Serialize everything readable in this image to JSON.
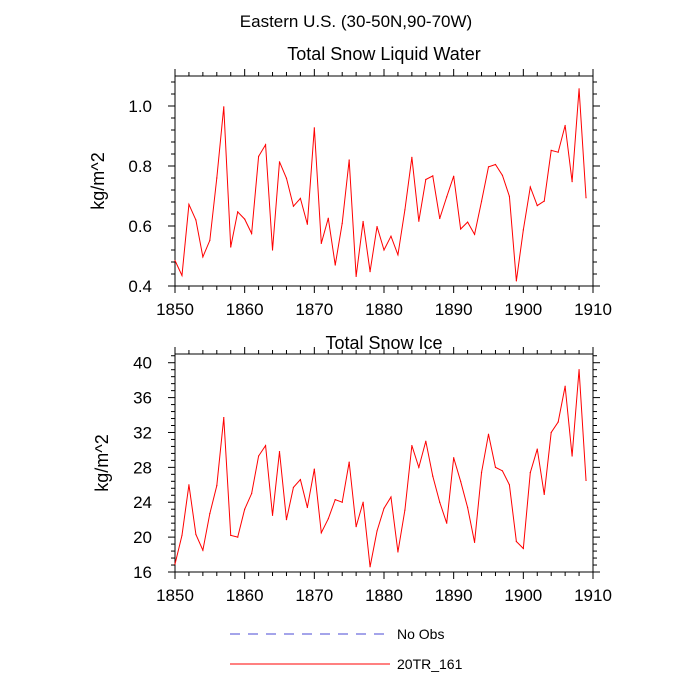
{
  "figure_title": "Eastern U.S. (30-50N,90-70W)",
  "legend": {
    "entries": [
      {
        "label": "No Obs",
        "color": "#4a4ad6",
        "style": "dashed"
      },
      {
        "label": "20TR_161",
        "color": "#ff0000",
        "style": "solid"
      }
    ]
  },
  "chart_data": [
    {
      "type": "line",
      "title": "Total Snow Liquid Water",
      "xlabel": "",
      "ylabel": "kg/m^2",
      "xlim": [
        1850,
        1910
      ],
      "ylim": [
        0.4,
        1.1
      ],
      "xticks": [
        1850,
        1860,
        1870,
        1880,
        1890,
        1900,
        1910
      ],
      "xtick_labels": [
        "1850",
        "1860",
        "1870",
        "1880",
        "1890",
        "1900",
        "1910"
      ],
      "yticks": [
        0.4,
        0.6,
        0.8,
        1.0
      ],
      "ytick_labels": [
        "0.4",
        "0.6",
        "0.8",
        "1.0"
      ],
      "grid": false,
      "series": [
        {
          "name": "20TR_161",
          "color": "#ff0000",
          "x": [
            1850,
            1851,
            1852,
            1853,
            1854,
            1855,
            1856,
            1857,
            1858,
            1859,
            1860,
            1861,
            1862,
            1863,
            1864,
            1865,
            1866,
            1867,
            1868,
            1869,
            1870,
            1871,
            1872,
            1873,
            1874,
            1875,
            1876,
            1877,
            1878,
            1879,
            1880,
            1881,
            1882,
            1883,
            1884,
            1885,
            1886,
            1887,
            1888,
            1889,
            1890,
            1891,
            1892,
            1893,
            1894,
            1895,
            1896,
            1897,
            1898,
            1899,
            1900,
            1901,
            1902,
            1903,
            1904,
            1905,
            1906,
            1907,
            1908,
            1909
          ],
          "y": [
            0.485,
            0.435,
            0.672,
            0.62,
            0.497,
            0.552,
            0.76,
            0.997,
            0.53,
            0.647,
            0.623,
            0.575,
            0.832,
            0.871,
            0.52,
            0.814,
            0.759,
            0.666,
            0.692,
            0.606,
            0.927,
            0.542,
            0.626,
            0.47,
            0.609,
            0.82,
            0.432,
            0.615,
            0.448,
            0.598,
            0.52,
            0.566,
            0.504,
            0.654,
            0.829,
            0.616,
            0.755,
            0.767,
            0.625,
            0.697,
            0.766,
            0.59,
            0.613,
            0.572,
            0.682,
            0.797,
            0.805,
            0.769,
            0.699,
            0.417,
            0.587,
            0.73,
            0.668,
            0.683,
            0.852,
            0.846,
            0.935,
            0.748,
            1.057,
            0.694
          ]
        }
      ]
    },
    {
      "type": "line",
      "title": "Total Snow Ice",
      "xlabel": "",
      "ylabel": "kg/m^2",
      "xlim": [
        1850,
        1910
      ],
      "ylim": [
        16,
        41
      ],
      "xticks": [
        1850,
        1860,
        1870,
        1880,
        1890,
        1900,
        1910
      ],
      "xtick_labels": [
        "1850",
        "1860",
        "1870",
        "1880",
        "1890",
        "1900",
        "1910"
      ],
      "yticks": [
        16,
        20,
        24,
        28,
        32,
        36,
        40
      ],
      "ytick_labels": [
        "16",
        "20",
        "24",
        "28",
        "32",
        "36",
        "40"
      ],
      "grid": false,
      "series": [
        {
          "name": "20TR_161",
          "color": "#ff0000",
          "x": [
            1850,
            1851,
            1852,
            1853,
            1854,
            1855,
            1856,
            1857,
            1858,
            1859,
            1860,
            1861,
            1862,
            1863,
            1864,
            1865,
            1866,
            1867,
            1868,
            1869,
            1870,
            1871,
            1872,
            1873,
            1874,
            1875,
            1876,
            1877,
            1878,
            1879,
            1880,
            1881,
            1882,
            1883,
            1884,
            1885,
            1886,
            1887,
            1888,
            1889,
            1890,
            1891,
            1892,
            1893,
            1894,
            1895,
            1896,
            1897,
            1898,
            1899,
            1900,
            1901,
            1902,
            1903,
            1904,
            1905,
            1906,
            1907,
            1908,
            1909
          ],
          "y": [
            16.9,
            20.2,
            26.0,
            20.3,
            18.5,
            22.7,
            25.9,
            33.7,
            20.2,
            20.0,
            23.2,
            25.0,
            29.3,
            30.5,
            22.5,
            29.8,
            22.0,
            25.7,
            26.6,
            23.4,
            27.8,
            20.5,
            22.1,
            24.3,
            24.0,
            28.6,
            21.2,
            24.0,
            16.6,
            20.7,
            23.3,
            24.6,
            18.3,
            23.1,
            30.5,
            28.0,
            31.0,
            27.0,
            24.0,
            21.6,
            29.1,
            26.4,
            23.4,
            19.4,
            27.4,
            31.8,
            28.0,
            27.6,
            26.0,
            19.5,
            18.7,
            27.4,
            30.1,
            24.9,
            32.0,
            33.2,
            37.3,
            29.3,
            39.2,
            26.5
          ]
        }
      ]
    }
  ]
}
